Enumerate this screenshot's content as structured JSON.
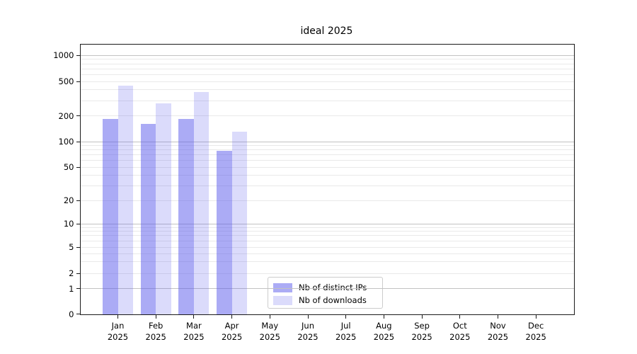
{
  "chart_data": {
    "type": "bar",
    "title": "ideal 2025",
    "categories": [
      "Jan 2025",
      "Feb 2025",
      "Mar 2025",
      "Apr 2025",
      "May 2025",
      "Jun 2025",
      "Jul 2025",
      "Aug 2025",
      "Sep 2025",
      "Oct 2025",
      "Nov 2025",
      "Dec 2025"
    ],
    "months": [
      "Jan",
      "Feb",
      "Mar",
      "Apr",
      "May",
      "Jun",
      "Jul",
      "Aug",
      "Sep",
      "Oct",
      "Nov",
      "Dec"
    ],
    "year": "2025",
    "series": [
      {
        "name": "Nb of distinct IPs",
        "color": "#5757eb",
        "alpha": 0.5,
        "values": [
          185,
          162,
          182,
          78,
          0,
          0,
          0,
          0,
          0,
          0,
          0,
          0
        ]
      },
      {
        "name": "Nb of downloads",
        "color": "#5757eb",
        "alpha": 0.21,
        "values": [
          449,
          278,
          376,
          130,
          0,
          0,
          0,
          0,
          0,
          0,
          0,
          0
        ]
      }
    ],
    "y_scale": "symlog",
    "y_ticks": [
      0,
      1,
      2,
      5,
      10,
      20,
      50,
      100,
      200,
      500,
      1000
    ],
    "ylim": [
      0,
      1330
    ],
    "xlabel": "",
    "ylabel": "",
    "grid": true,
    "legend_position": "lower center"
  },
  "legend": {
    "items": [
      {
        "label": "Nb of distinct IPs",
        "swatch_color": "rgba(87,87,235,0.5)"
      },
      {
        "label": "Nb of downloads",
        "swatch_color": "rgba(87,87,235,0.21)"
      }
    ]
  },
  "colors": {
    "bar_dark": "rgba(87,87,235,0.5)",
    "bar_light": "rgba(87,87,235,0.21)",
    "grid_major": "#c2c2c2",
    "grid_minor": "#e9e9e9",
    "spine": "#1a1a1a"
  }
}
